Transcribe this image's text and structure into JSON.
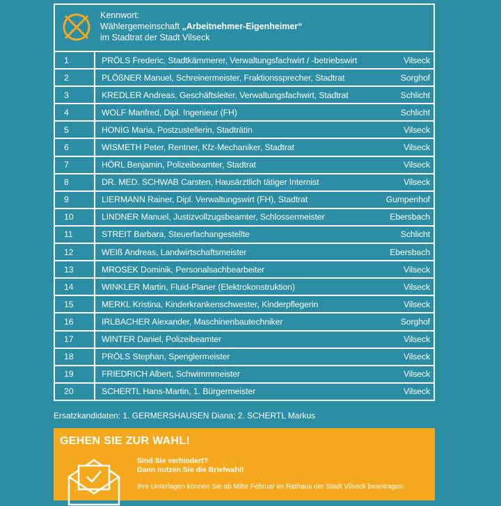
{
  "header": {
    "label": "Kennwort:",
    "line1": "Wählergemeinschaft",
    "name": "„Arbeitnehmer-Eigenheimer“",
    "line2": "im Stadtrat der Stadt Vilseck"
  },
  "rows": [
    [
      "1",
      "PRÖLS Frederic, Stadtkämmerer, Verwaltungsfachwirt / -betriebswirt",
      "Vilseck"
    ],
    [
      "2",
      "PLÖßNER Manuel, Schreinermeister, Fraktionssprecher, Stadtrat",
      "Sorghof"
    ],
    [
      "3",
      "KREDLER Andreas, Geschäftsleiter, Verwaltungsfachwirt, Stadtrat",
      "Schlicht"
    ],
    [
      "4",
      "WOLF Manfred, Dipl. Ingenieur (FH)",
      "Schlicht"
    ],
    [
      "5",
      "HONIG Maria, Postzustellerin, Stadträtin",
      "Vilseck"
    ],
    [
      "6",
      "WISMETH Peter, Rentner, Kfz-Mechaniker, Stadtrat",
      "Vilseck"
    ],
    [
      "7",
      "HÖRL Benjamin, Polizeibeamter, Stadtrat",
      "Vilseck"
    ],
    [
      "8",
      "DR. MED. SCHWAB Carsten, Hausärztlich tätiger Internist",
      "Vilseck"
    ],
    [
      "9",
      "LIERMANN Rainer, Dipl. Verwaltungswirt (FH), Stadtrat",
      "Gumpenhof"
    ],
    [
      "10",
      "LINDNER Manuel, Justizvollzugsbeamter, Schlossermeister",
      "Ebersbach"
    ],
    [
      "11",
      "STREIT Barbara, Steuerfachangestellte",
      "Schlicht"
    ],
    [
      "12",
      "WEIß Andreas, Landwirtschaftsmeister",
      "Ebersbach"
    ],
    [
      "13",
      "MROSEK Dominik, Personalsachbearbeiter",
      "Vilseck"
    ],
    [
      "14",
      "WINKLER Martin, Fluid-Planer (Elektrokonstruktion)",
      "Vilseck"
    ],
    [
      "15",
      "MERKL Kristina, Kinderkrankenschwester, Kinderpflegerin",
      "Vilseck"
    ],
    [
      "16",
      "IRLBACHER Alexander, Maschinenbautechniker",
      "Sorghof"
    ],
    [
      "17",
      "WINTER Daniel, Polizeibeamter",
      "Vilseck"
    ],
    [
      "18",
      "PRÖLS Stephan, Spenglermeister",
      "Vilseck"
    ],
    [
      "19",
      "FRIEDRICH Albert, Schwimmmeister",
      "Vilseck"
    ],
    [
      "20",
      "SCHERTL Hans-Martin, 1. Bürgermeister",
      "Vilseck"
    ]
  ],
  "substitutes": "Ersatzkandidaten: 1. GERMERSHAUSEN Diana; 2. SCHERTL Markus",
  "banner": {
    "title": "GEHEN SIE ZUR WAHL!",
    "line1": "Sind Sie verhindert?",
    "line2": "Dann nutzen Sie die Briefwahl!",
    "line3": "Ihre Unterlagen können Sie ab Mitte Februar im Rathaus der Stadt Vilseck beantragen."
  }
}
